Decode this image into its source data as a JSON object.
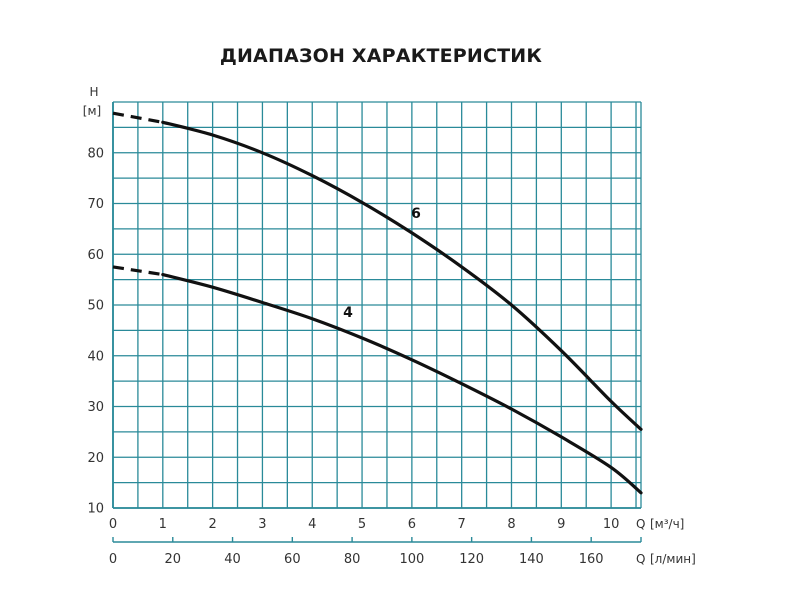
{
  "chart_data": {
    "type": "line",
    "title": "ДИАПАЗОН ХАРАКТЕРИСТИК",
    "ylabel": "H",
    "yunit": "[м]",
    "xlabel": "Q",
    "xunit": "[м³/ч]",
    "x2label": "Q",
    "x2unit": "[л/мин]",
    "xlim": [
      0,
      10.6
    ],
    "ylim": [
      10,
      90
    ],
    "grid": true,
    "grid_color": "#2a8a99",
    "line_color": "#111111",
    "x_ticks": [
      "0",
      "1",
      "2",
      "3",
      "4",
      "5",
      "6",
      "7",
      "8",
      "9",
      "10"
    ],
    "y_ticks": [
      "10",
      "20",
      "30",
      "40",
      "50",
      "60",
      "70",
      "80"
    ],
    "x2_ticks": [
      "0",
      "20",
      "40",
      "60",
      "80",
      "100",
      "120",
      "140",
      "160"
    ],
    "series": [
      {
        "name": "6",
        "dashed": {
          "x": [
            0,
            1
          ],
          "y": [
            87.8,
            86
          ]
        },
        "x": [
          1,
          2,
          3,
          4,
          5,
          6,
          7,
          8,
          9,
          10,
          10.6
        ],
        "y": [
          86,
          83.5,
          80,
          75.5,
          70.2,
          64.2,
          57.5,
          50,
          41,
          31,
          25.5
        ]
      },
      {
        "name": "4",
        "dashed": {
          "x": [
            0,
            1
          ],
          "y": [
            57.5,
            56
          ]
        },
        "x": [
          1,
          2,
          3,
          4,
          5,
          6,
          7,
          8,
          9,
          10,
          10.6
        ],
        "y": [
          56,
          53.5,
          50.5,
          47.3,
          43.5,
          39.2,
          34.5,
          29.5,
          24,
          18,
          13
        ]
      }
    ]
  }
}
